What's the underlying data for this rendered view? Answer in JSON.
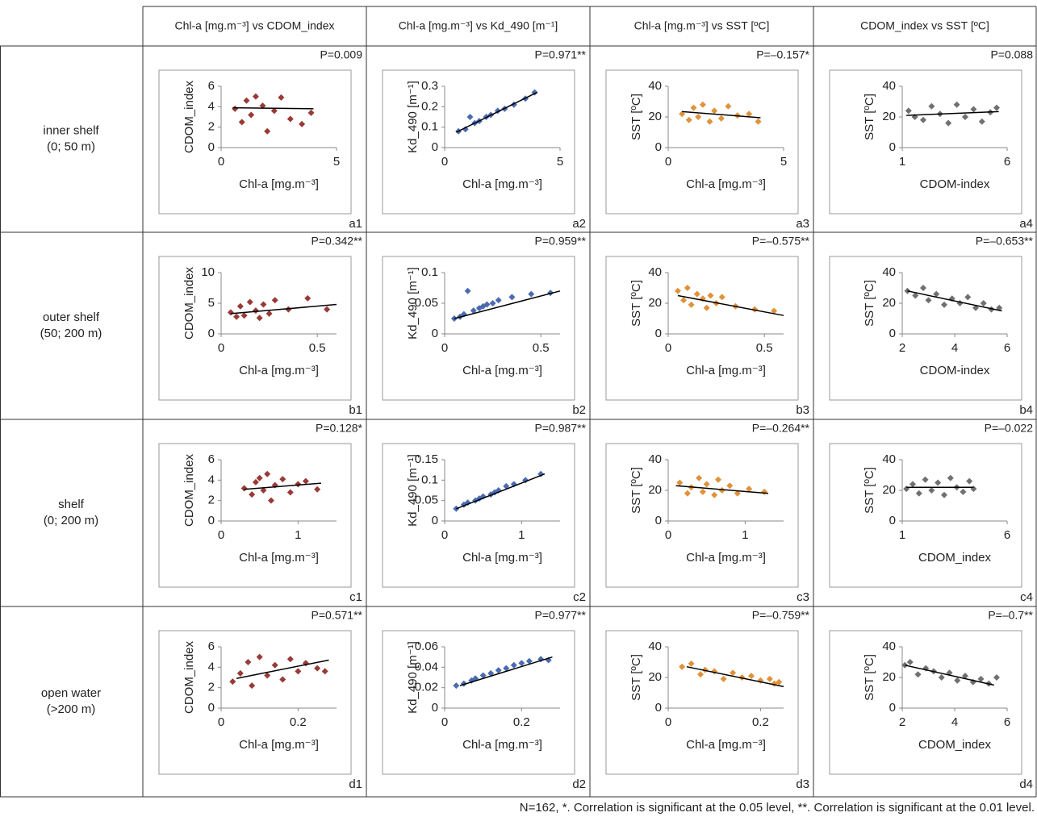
{
  "table": {
    "column_headers": [
      "Chl-a [mg.m⁻³] vs CDOM_index",
      "Chl-a [mg.m⁻³] vs Kd_490 [m⁻¹]",
      "Chl-a [mg.m⁻³] vs SST [ºC]",
      "CDOM_index vs SST [ºC]"
    ],
    "row_labels": [
      [
        "inner shelf",
        "(0; 50 m)"
      ],
      [
        "outer shelf",
        "(50; 200 m)"
      ],
      [
        "shelf",
        "(0; 200 m)"
      ],
      [
        "open water",
        "(>200 m)"
      ]
    ],
    "footnote": "N=162, *. Correlation is significant at the 0.05 level, **. Correlation is significant at the 0.01 level."
  },
  "chart_data": [
    {
      "type": "scatter",
      "panel": "a1",
      "annotation": "P=0.009",
      "x_label": "Chl-a [mg.m⁻³]",
      "y_label": "CDOM_index",
      "color": "#983a36",
      "xlim": [
        0,
        5
      ],
      "xticks": [
        0,
        5
      ],
      "ylim": [
        0,
        6
      ],
      "yticks": [
        0,
        2,
        4,
        6
      ],
      "x": [
        0.6,
        0.9,
        1.1,
        1.3,
        1.5,
        1.8,
        2.0,
        2.3,
        2.6,
        3.0,
        3.5,
        3.9
      ],
      "values": [
        3.8,
        2.5,
        4.6,
        3.2,
        5.0,
        4.1,
        1.6,
        3.6,
        4.9,
        2.8,
        2.3,
        3.4
      ],
      "trendline": {
        "x": [
          0.5,
          4
        ],
        "y": [
          3.9,
          3.8
        ]
      }
    },
    {
      "type": "scatter",
      "panel": "a2",
      "annotation": "P=0.971**",
      "x_label": "Chl-a [mg.m⁻³]",
      "y_label": "Kd_490 [m⁻¹]",
      "color": "#4a6bb0",
      "xlim": [
        0,
        5
      ],
      "xticks": [
        0,
        5
      ],
      "ylim": [
        0,
        0.3
      ],
      "yticks": [
        0,
        0.1,
        0.2,
        0.3
      ],
      "x": [
        0.6,
        0.9,
        1.1,
        1.3,
        1.5,
        1.8,
        2.0,
        2.3,
        2.6,
        3.0,
        3.5,
        3.9
      ],
      "values": [
        0.08,
        0.09,
        0.15,
        0.12,
        0.13,
        0.15,
        0.16,
        0.18,
        0.19,
        0.21,
        0.24,
        0.27
      ],
      "trendline": {
        "x": [
          0.5,
          4
        ],
        "y": [
          0.075,
          0.27
        ]
      }
    },
    {
      "type": "scatter",
      "panel": "a3",
      "annotation": "P=–0.157*",
      "x_label": "Chl-a [mg.m⁻³]",
      "y_label": "SST [ºC]",
      "color": "#e0923a",
      "xlim": [
        0,
        5
      ],
      "xticks": [
        0,
        5
      ],
      "ylim": [
        0,
        40
      ],
      "yticks": [
        0,
        20,
        40
      ],
      "x": [
        0.6,
        0.9,
        1.1,
        1.3,
        1.5,
        1.8,
        2.0,
        2.3,
        2.6,
        3.0,
        3.5,
        3.9
      ],
      "values": [
        22,
        18,
        26,
        20,
        28,
        17,
        24,
        19,
        27,
        21,
        22,
        17
      ],
      "trendline": {
        "x": [
          0.6,
          4
        ],
        "y": [
          23.5,
          19.5
        ]
      }
    },
    {
      "type": "scatter",
      "panel": "a4",
      "annotation": "P=0.088",
      "x_label": "CDOM-index",
      "y_label": "SST [ºC]",
      "color": "#707070",
      "xlim": [
        1,
        6
      ],
      "xticks": [
        1,
        6
      ],
      "ylim": [
        0,
        40
      ],
      "yticks": [
        0,
        20,
        40
      ],
      "x": [
        1.3,
        1.6,
        2.0,
        2.4,
        2.8,
        3.2,
        3.6,
        4.0,
        4.4,
        4.8,
        5.2,
        5.5
      ],
      "values": [
        24,
        20,
        18,
        27,
        22,
        16,
        28,
        20,
        25,
        17,
        23,
        26
      ],
      "trendline": {
        "x": [
          1.2,
          5.6
        ],
        "y": [
          21,
          23.5
        ]
      }
    },
    {
      "type": "scatter",
      "panel": "b1",
      "annotation": "P=0.342**",
      "x_label": "Chl-a [mg.m⁻³]",
      "y_label": "CDOM_index",
      "color": "#983a36",
      "xlim": [
        0,
        0.6
      ],
      "xticks": [
        0,
        0.5
      ],
      "ylim": [
        0,
        10
      ],
      "yticks": [
        0,
        5,
        10
      ],
      "x": [
        0.05,
        0.08,
        0.1,
        0.12,
        0.15,
        0.18,
        0.2,
        0.22,
        0.25,
        0.28,
        0.35,
        0.45,
        0.55
      ],
      "values": [
        3.5,
        2.8,
        4.5,
        3.0,
        5.2,
        3.8,
        2.6,
        4.8,
        3.3,
        5.5,
        4.0,
        5.8,
        4.0
      ],
      "trendline": {
        "x": [
          0.05,
          0.6
        ],
        "y": [
          3.3,
          4.8
        ]
      }
    },
    {
      "type": "scatter",
      "panel": "b2",
      "annotation": "P=0.959**",
      "x_label": "Chl-a [mg.m⁻³]",
      "y_label": "Kd_490 [m⁻¹]",
      "color": "#4a6bb0",
      "xlim": [
        0,
        0.6
      ],
      "xticks": [
        0,
        0.5
      ],
      "ylim": [
        0,
        0.1
      ],
      "yticks": [
        0,
        0.05,
        0.1
      ],
      "x": [
        0.05,
        0.08,
        0.1,
        0.12,
        0.15,
        0.18,
        0.2,
        0.22,
        0.25,
        0.28,
        0.35,
        0.45,
        0.55
      ],
      "values": [
        0.025,
        0.028,
        0.032,
        0.07,
        0.038,
        0.042,
        0.045,
        0.048,
        0.05,
        0.055,
        0.06,
        0.065,
        0.067
      ],
      "trendline": {
        "x": [
          0.05,
          0.6
        ],
        "y": [
          0.025,
          0.07
        ]
      }
    },
    {
      "type": "scatter",
      "panel": "b3",
      "annotation": "P=–0.575**",
      "x_label": "Chl-a [mg.m⁻³]",
      "y_label": "SST [ºC]",
      "color": "#e0923a",
      "xlim": [
        0,
        0.6
      ],
      "xticks": [
        0,
        0.5
      ],
      "ylim": [
        0,
        40
      ],
      "yticks": [
        0,
        20,
        40
      ],
      "x": [
        0.05,
        0.08,
        0.1,
        0.12,
        0.15,
        0.18,
        0.2,
        0.22,
        0.25,
        0.28,
        0.35,
        0.45,
        0.55
      ],
      "values": [
        28,
        22,
        30,
        19,
        26,
        23,
        17,
        25,
        20,
        24,
        18,
        16,
        15
      ],
      "trendline": {
        "x": [
          0.05,
          0.6
        ],
        "y": [
          25,
          12
        ]
      }
    },
    {
      "type": "scatter",
      "panel": "b4",
      "annotation": "P=–0.653**",
      "x_label": "CDOM-index",
      "y_label": "SST [ºC]",
      "color": "#707070",
      "xlim": [
        2,
        6
      ],
      "xticks": [
        2,
        4,
        6
      ],
      "ylim": [
        0,
        40
      ],
      "yticks": [
        0,
        20,
        40
      ],
      "x": [
        2.2,
        2.5,
        2.8,
        3.0,
        3.3,
        3.6,
        3.9,
        4.2,
        4.5,
        4.8,
        5.1,
        5.4,
        5.7
      ],
      "values": [
        28,
        25,
        30,
        22,
        26,
        19,
        23,
        20,
        24,
        17,
        20,
        16,
        17
      ],
      "trendline": {
        "x": [
          2.2,
          5.8
        ],
        "y": [
          28,
          15
        ]
      }
    },
    {
      "type": "scatter",
      "panel": "c1",
      "annotation": "P=0.128*",
      "x_label": "Chl-a [mg.m⁻³]",
      "y_label": "CDOM_index",
      "color": "#983a36",
      "xlim": [
        0,
        1.5
      ],
      "xticks": [
        0,
        1
      ],
      "ylim": [
        0,
        6
      ],
      "yticks": [
        0,
        2,
        4,
        6
      ],
      "x": [
        0.3,
        0.4,
        0.45,
        0.5,
        0.55,
        0.6,
        0.65,
        0.7,
        0.8,
        0.9,
        1.0,
        1.1,
        1.25
      ],
      "values": [
        3.2,
        2.6,
        3.8,
        4.2,
        3.0,
        4.6,
        2.0,
        3.5,
        4.1,
        2.8,
        3.6,
        3.9,
        3.1
      ],
      "trendline": {
        "x": [
          0.3,
          1.3
        ],
        "y": [
          3.1,
          3.7
        ]
      }
    },
    {
      "type": "scatter",
      "panel": "c2",
      "annotation": "P=0.987**",
      "x_label": "Chl-a [mg.m⁻³]",
      "y_label": "Kd_490 [m⁻¹]",
      "color": "#4a6bb0",
      "xlim": [
        0,
        1.5
      ],
      "xticks": [
        0,
        1
      ],
      "ylim": [
        0,
        0.15
      ],
      "yticks": [
        0,
        0.05,
        0.1,
        0.15
      ],
      "x": [
        0.15,
        0.25,
        0.3,
        0.4,
        0.45,
        0.5,
        0.6,
        0.65,
        0.7,
        0.8,
        0.9,
        1.05,
        1.25
      ],
      "values": [
        0.03,
        0.04,
        0.045,
        0.05,
        0.055,
        0.06,
        0.065,
        0.07,
        0.075,
        0.085,
        0.09,
        0.1,
        0.115
      ],
      "trendline": {
        "x": [
          0.15,
          1.3
        ],
        "y": [
          0.03,
          0.115
        ]
      }
    },
    {
      "type": "scatter",
      "panel": "c3",
      "annotation": "P=–0.264**",
      "x_label": "Chl-a [mg.m⁻³]",
      "y_label": "SST [ºC]",
      "color": "#e0923a",
      "xlim": [
        0,
        1.5
      ],
      "xticks": [
        0,
        1
      ],
      "ylim": [
        0,
        40
      ],
      "yticks": [
        0,
        20,
        40
      ],
      "x": [
        0.15,
        0.25,
        0.3,
        0.4,
        0.45,
        0.5,
        0.6,
        0.65,
        0.7,
        0.8,
        0.9,
        1.05,
        1.25
      ],
      "values": [
        25,
        18,
        22,
        28,
        19,
        24,
        17,
        27,
        20,
        23,
        18,
        21,
        19
      ],
      "trendline": {
        "x": [
          0.1,
          1.3
        ],
        "y": [
          23,
          18
        ]
      }
    },
    {
      "type": "scatter",
      "panel": "c4",
      "annotation": "P=–0.022",
      "x_label": "CDOM_index",
      "y_label": "SST [ºC]",
      "color": "#707070",
      "xlim": [
        1,
        6
      ],
      "xticks": [
        1,
        6
      ],
      "ylim": [
        0,
        40
      ],
      "yticks": [
        0,
        20,
        40
      ],
      "x": [
        1.2,
        1.5,
        1.8,
        2.1,
        2.4,
        2.7,
        3.0,
        3.3,
        3.6,
        3.9,
        4.2,
        4.4
      ],
      "values": [
        21,
        24,
        18,
        27,
        20,
        25,
        17,
        28,
        22,
        19,
        26,
        21
      ],
      "trendline": {
        "x": [
          1.2,
          4.4
        ],
        "y": [
          22,
          22
        ]
      }
    },
    {
      "type": "scatter",
      "panel": "d1",
      "annotation": "P=0.571**",
      "x_label": "Chl-a [mg.m⁻³]",
      "y_label": "CDOM_index",
      "color": "#983a36",
      "xlim": [
        0,
        0.3
      ],
      "xticks": [
        0,
        0.2
      ],
      "ylim": [
        0,
        6
      ],
      "yticks": [
        0,
        2,
        4,
        6
      ],
      "x": [
        0.03,
        0.05,
        0.07,
        0.08,
        0.1,
        0.12,
        0.14,
        0.16,
        0.18,
        0.2,
        0.22,
        0.25,
        0.27
      ],
      "values": [
        2.6,
        3.4,
        4.5,
        2.2,
        5.0,
        3.2,
        4.2,
        2.8,
        4.8,
        3.6,
        4.4,
        3.9,
        3.6
      ],
      "trendline": {
        "x": [
          0.04,
          0.28
        ],
        "y": [
          2.9,
          4.7
        ]
      }
    },
    {
      "type": "scatter",
      "panel": "d2",
      "annotation": "P=0.977**",
      "x_label": "Chl-a [mg.m⁻³]",
      "y_label": "Kd_490 [m⁻¹]",
      "color": "#4a6bb0",
      "xlim": [
        0,
        0.3
      ],
      "xticks": [
        0,
        0.2
      ],
      "ylim": [
        0,
        0.06
      ],
      "yticks": [
        0,
        0.02,
        0.04,
        0.06
      ],
      "x": [
        0.03,
        0.05,
        0.07,
        0.08,
        0.1,
        0.12,
        0.14,
        0.16,
        0.18,
        0.2,
        0.22,
        0.25,
        0.27
      ],
      "values": [
        0.022,
        0.024,
        0.027,
        0.029,
        0.032,
        0.034,
        0.037,
        0.039,
        0.042,
        0.044,
        0.046,
        0.048,
        0.047
      ],
      "trendline": {
        "x": [
          0.04,
          0.28
        ],
        "y": [
          0.022,
          0.05
        ]
      }
    },
    {
      "type": "scatter",
      "panel": "d3",
      "annotation": "P=–0.759**",
      "x_label": "Chl-a [mg.m⁻³]",
      "y_label": "SST [ºC]",
      "color": "#e0923a",
      "xlim": [
        0,
        0.25
      ],
      "xticks": [
        0,
        0.2
      ],
      "ylim": [
        0,
        40
      ],
      "yticks": [
        0,
        20,
        40
      ],
      "x": [
        0.03,
        0.05,
        0.07,
        0.08,
        0.1,
        0.12,
        0.14,
        0.16,
        0.18,
        0.2,
        0.22,
        0.23,
        0.24
      ],
      "values": [
        27,
        29,
        22,
        25,
        24,
        19,
        23,
        20,
        21,
        18,
        19,
        16,
        17
      ],
      "trendline": {
        "x": [
          0.04,
          0.25
        ],
        "y": [
          27,
          14
        ]
      }
    },
    {
      "type": "scatter",
      "panel": "d4",
      "annotation": "P=–0.7**",
      "x_label": "CDOM_index",
      "y_label": "SST [ºC]",
      "color": "#707070",
      "xlim": [
        2,
        6
      ],
      "xticks": [
        2,
        4,
        6
      ],
      "ylim": [
        0,
        40
      ],
      "yticks": [
        0,
        20,
        40
      ],
      "x": [
        2.1,
        2.3,
        2.6,
        2.9,
        3.2,
        3.5,
        3.8,
        4.1,
        4.4,
        4.7,
        5.0,
        5.3,
        5.6
      ],
      "values": [
        28,
        30,
        22,
        26,
        24,
        20,
        23,
        18,
        21,
        17,
        19,
        16,
        20
      ],
      "trendline": {
        "x": [
          2.1,
          5.5
        ],
        "y": [
          28,
          15
        ]
      }
    }
  ]
}
